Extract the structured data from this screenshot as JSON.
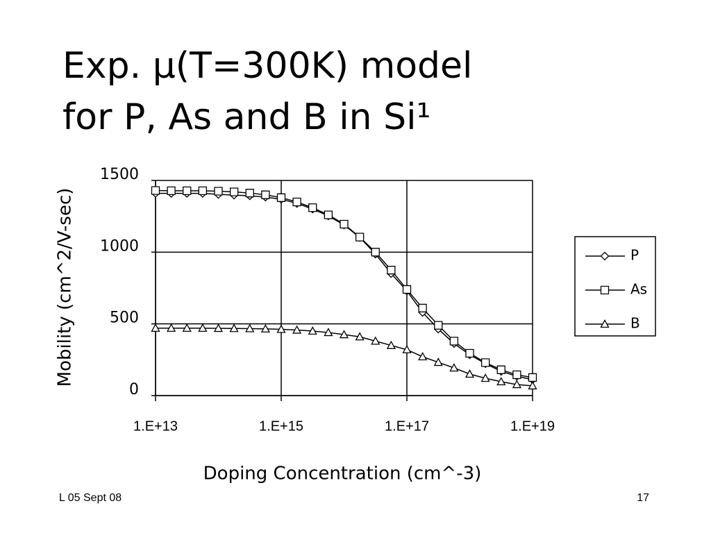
{
  "slide": {
    "title_lines": [
      "Exp. μ(T=300K) model",
      "for P, As and B in Si¹"
    ],
    "footer_left": "L 05 Sept 08",
    "page_number": "17"
  },
  "chart_data": {
    "type": "line",
    "xlog": true,
    "grid": true,
    "legend": "right",
    "xlabel": "Doping Concentration (cm^-3)",
    "ylabel": "Mobility (cm^2/V-sec)",
    "xlim": [
      10000000000000.0,
      1e+19
    ],
    "ylim": [
      0,
      1500
    ],
    "xticks": [
      {
        "value": 10000000000000.0,
        "label": "1.E+13"
      },
      {
        "value": 1000000000000000.0,
        "label": "1.E+15"
      },
      {
        "value": 1e+17,
        "label": "1.E+17"
      },
      {
        "value": 1e+19,
        "label": "1.E+19"
      }
    ],
    "yticks": [
      0,
      500,
      1000,
      1500
    ],
    "x": [
      10000000000000.0,
      17780000000000.0,
      31620000000000.0,
      56230000000000.0,
      100000000000000.0,
      177800000000000.0,
      316200000000000.0,
      562300000000000.0,
      1000000000000000.0,
      1778000000000000.0,
      3162000000000000.0,
      5623000000000000.0,
      1e+16,
      1.778e+16,
      3.162e+16,
      5.623e+16,
      1e+17,
      1.778e+17,
      3.162e+17,
      5.623e+17,
      1e+18,
      1.778e+18,
      3.162e+18,
      5.623e+18,
      1e+19
    ],
    "series": [
      {
        "name": "P",
        "color": "#000000",
        "marker": "diamond",
        "values": [
          1410,
          1410,
          1410,
          1410,
          1403,
          1398,
          1393,
          1384,
          1369,
          1340,
          1301,
          1253,
          1190,
          1103,
          987,
          851,
          730,
          580,
          464,
          363,
          285,
          223,
          169,
          135,
          111
        ]
      },
      {
        "name": "As",
        "color": "#000000",
        "marker": "square",
        "values": [
          1430,
          1428,
          1428,
          1428,
          1425,
          1420,
          1412,
          1400,
          1380,
          1350,
          1310,
          1260,
          1195,
          1105,
          1000,
          875,
          740,
          610,
          490,
          380,
          295,
          230,
          180,
          145,
          126
        ]
      },
      {
        "name": "B",
        "color": "#000000",
        "marker": "triangle",
        "values": [
          470,
          470,
          470,
          470,
          469,
          468,
          467,
          465,
          462,
          457,
          450,
          440,
          425,
          410,
          380,
          350,
          320,
          271,
          232,
          193,
          150,
          121,
          97,
          77,
          68
        ]
      }
    ]
  }
}
